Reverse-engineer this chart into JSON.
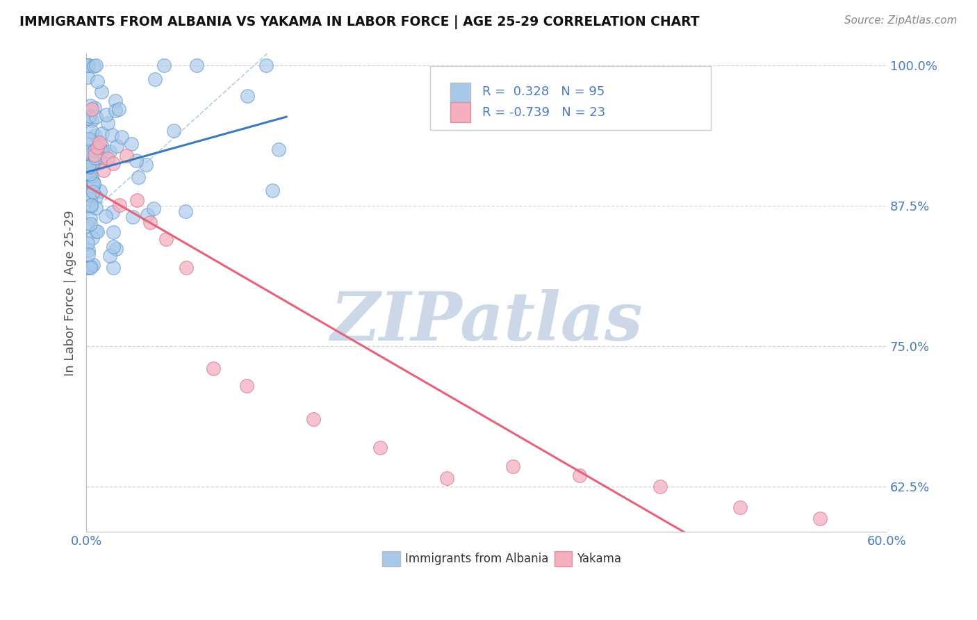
{
  "title": "IMMIGRANTS FROM ALBANIA VS YAKAMA IN LABOR FORCE | AGE 25-29 CORRELATION CHART",
  "source_text": "Source: ZipAtlas.com",
  "ylabel": "In Labor Force | Age 25-29",
  "xlim": [
    0.0,
    0.6
  ],
  "ylim": [
    0.585,
    1.01
  ],
  "yticks": [
    0.625,
    0.75,
    0.875,
    1.0
  ],
  "ytick_labels": [
    "62.5%",
    "75.0%",
    "87.5%",
    "100.0%"
  ],
  "watermark_text": "ZIPatlas",
  "legend_label_albania": "Immigrants from Albania",
  "legend_label_yakama": "Yakama",
  "r_albania": 0.328,
  "n_albania": 95,
  "r_yakama": -0.739,
  "n_yakama": 23,
  "albania_line_color": "#3a7abf",
  "yakama_line_color": "#e8607a",
  "albania_marker_facecolor": "#a8c8ea",
  "albania_marker_edgecolor": "#5090c8",
  "yakama_marker_facecolor": "#f4b0c0",
  "yakama_marker_edgecolor": "#d87090",
  "background_color": "#ffffff",
  "grid_color": "#cccccc",
  "title_color": "#111111",
  "axis_label_color": "#555555",
  "tick_label_color": "#4a7abf",
  "legend_text_color": "#4a7abf",
  "watermark_color": "#ccd8e8",
  "source_color": "#888888",
  "dashed_line_color": "#aac8e0"
}
